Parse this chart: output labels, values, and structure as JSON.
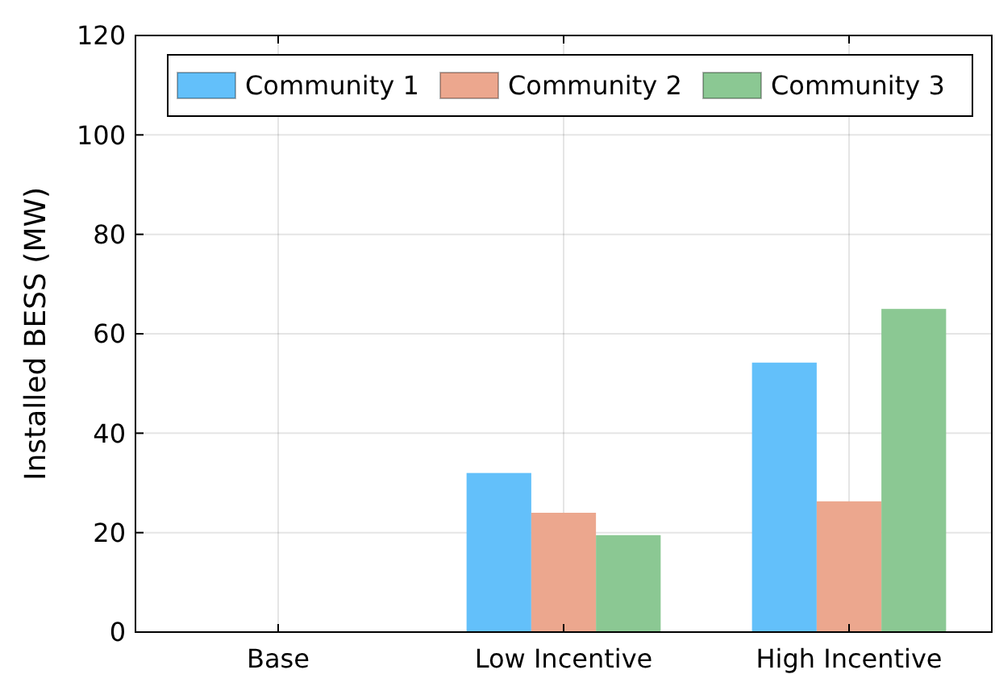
{
  "chart_data": {
    "type": "bar",
    "ylabel": "Installed BESS (MW)",
    "categories": [
      "Base",
      "Low Incentive",
      "High Incentive"
    ],
    "series": [
      {
        "name": "Community 1",
        "color": "#63c0fa",
        "values": [
          0,
          32,
          54.2
        ]
      },
      {
        "name": "Community 2",
        "color": "#eca78e",
        "values": [
          0,
          24,
          26.3
        ]
      },
      {
        "name": "Community 3",
        "color": "#8bc893",
        "values": [
          0,
          19.5,
          65
        ]
      }
    ],
    "ylim": [
      0,
      120
    ],
    "yticks": [
      0,
      20,
      40,
      60,
      80,
      100,
      120
    ],
    "grid": true,
    "legend": "top"
  }
}
